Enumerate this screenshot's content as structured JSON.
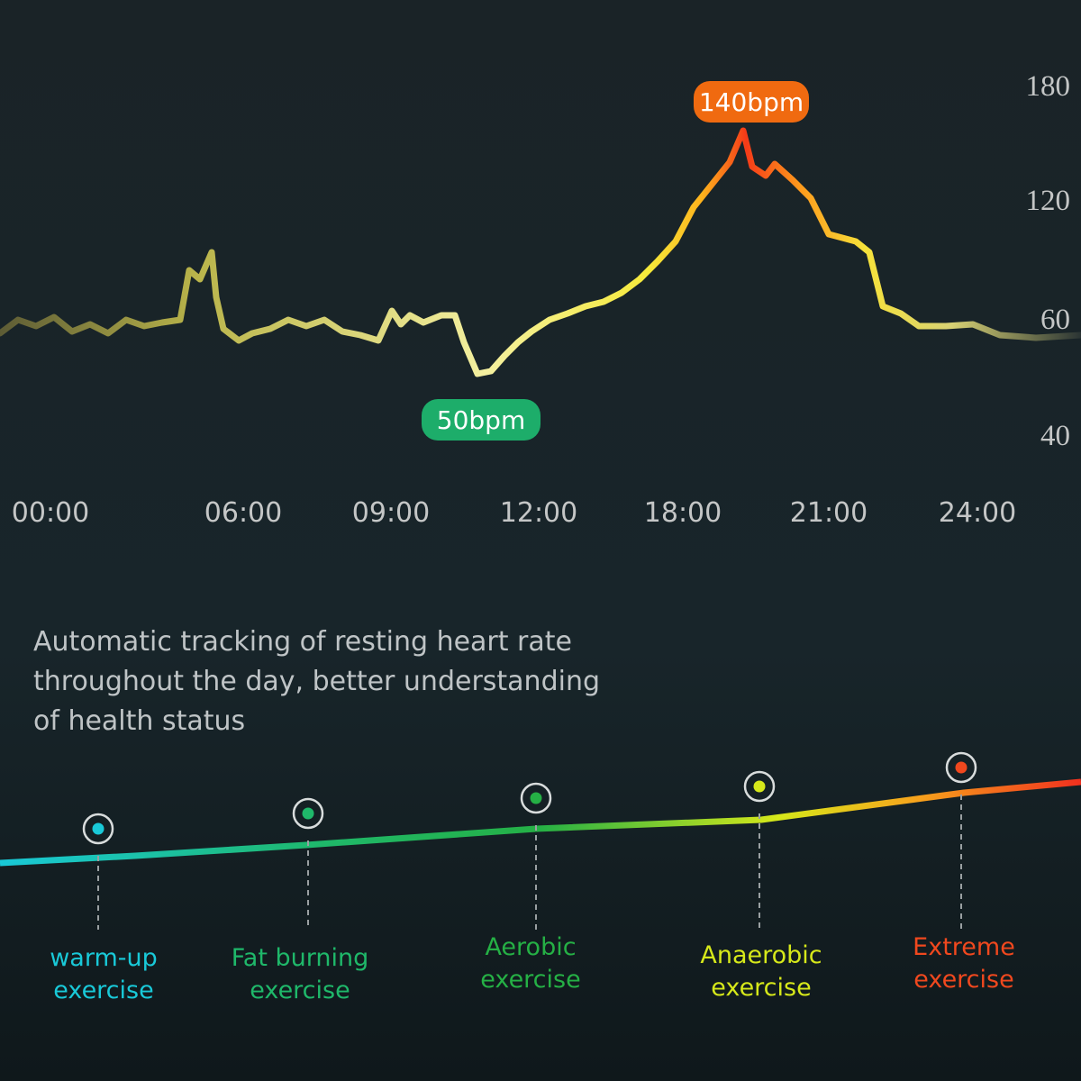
{
  "heart_rate_chart": {
    "y_axis_labels": [
      "180",
      "120",
      "60",
      "40"
    ],
    "x_axis_labels": [
      "00:00",
      "06:00",
      "09:00",
      "12:00",
      "18:00",
      "21:00",
      "24:00"
    ],
    "peak_label": "140bpm",
    "low_label": "50bpm"
  },
  "description": [
    "Automatic tracking of resting heart rate",
    "throughout the day, better understanding",
    "of health status"
  ],
  "zones": [
    {
      "label": [
        "warm-up",
        "exercise"
      ],
      "color": "#19c9d8"
    },
    {
      "label": [
        "Fat burning",
        "exercise"
      ],
      "color": "#1fb86a"
    },
    {
      "label": [
        "Aerobic",
        "exercise"
      ],
      "color": "#25b045"
    },
    {
      "label": [
        "Anaerobic",
        "exercise"
      ],
      "color": "#d6e81a"
    },
    {
      "label": [
        "Extreme",
        "exercise"
      ],
      "color": "#f0481e"
    }
  ]
}
